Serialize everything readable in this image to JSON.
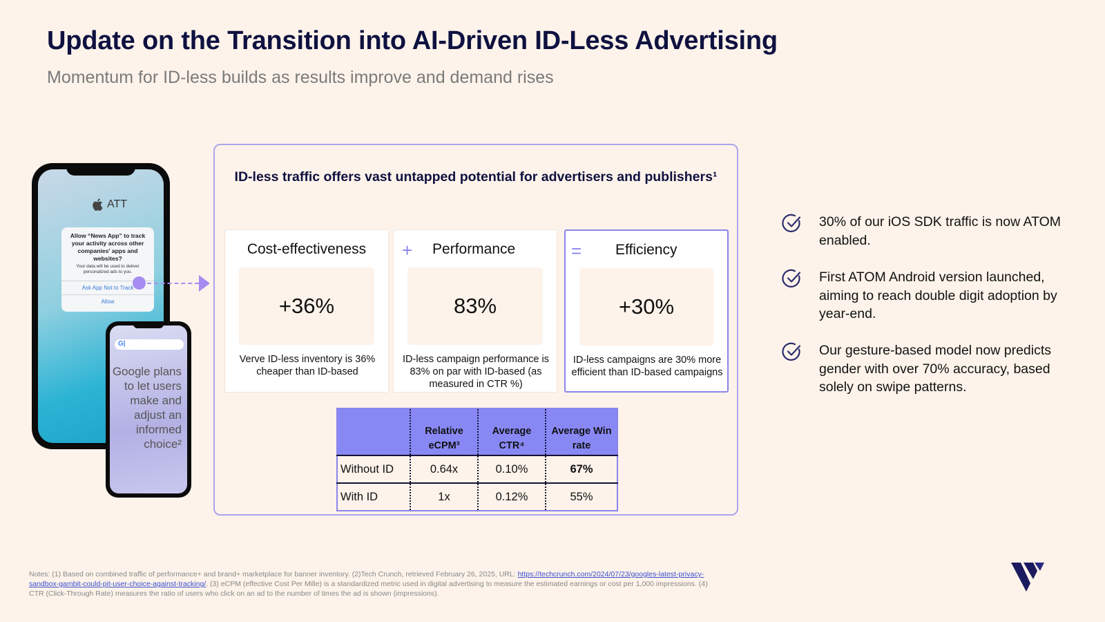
{
  "header": {
    "title": "Update on the Transition into AI-Driven ID-Less Advertising",
    "subtitle": "Momentum for ID-less builds as results improve and demand rises"
  },
  "phone_att": {
    "label": "ATT",
    "dialog_question": "Allow “News App” to track your activity across other companies' apps and websites?",
    "dialog_detail": "Your data will be used to deliver personalized ads to you.",
    "option_ask": "Ask App Not to Track",
    "option_allow": "Allow"
  },
  "phone_google": {
    "search_logo": "G|",
    "text": "Google plans to let users make and adjust an informed choice²"
  },
  "panel": {
    "title": "ID-less traffic offers vast untapped potential for advertisers and publishers¹",
    "cards": [
      {
        "symbol": "",
        "heading": "Cost-effectiveness",
        "value": "+36%",
        "description": "Verve ID-less inventory is 36% cheaper than ID-based"
      },
      {
        "symbol": "+",
        "heading": "Performance",
        "value": "83%",
        "description": "ID-less campaign performance is 83% on par with ID-based (as measured in CTR %)"
      },
      {
        "symbol": "=",
        "heading": "Efficiency",
        "value": "+30%",
        "description": "ID-less campaigns are 30% more efficient than ID-based campaigns"
      }
    ],
    "table": {
      "headers": [
        "",
        "Relative eCPM³",
        "Average CTR⁴",
        "Average Win rate"
      ],
      "rows": [
        [
          "Without ID",
          "0.64x",
          "0.10%",
          "67%"
        ],
        [
          "With ID",
          "1x",
          "0.12%",
          "55%"
        ]
      ]
    }
  },
  "bullets": [
    "30% of our iOS SDK traffic is now ATOM enabled.",
    "First ATOM Android version launched, aiming to reach double digit adoption by year-end.",
    "Our gesture-based model now predicts gender with over 70% accuracy, based solely on swipe patterns."
  ],
  "notes": {
    "part1": "Notes: (1) Based on combined traffic of performance+ and brand+ marketplace for banner inventory. (2)Tech Crunch, retrieved February 26, 2025, URL: ",
    "link": "https://techcrunch.com/2024/07/23/googles-latest-privacy-sandbox-gambit-could-pit-user-choice-against-tracking/",
    "part2": ". (3) eCPM (effective Cost Per Mille) is a standardized metric used in digital advertising to measure the estimated earnings or cost per 1,000 impressions. (4) CTR (Click-Through Rate) measures the ratio of users who click on an ad to the number of times the ad is shown (impressions)."
  },
  "colors": {
    "accent": "#8a84ea",
    "title": "#0f1140",
    "background": "#fdf3ea"
  }
}
